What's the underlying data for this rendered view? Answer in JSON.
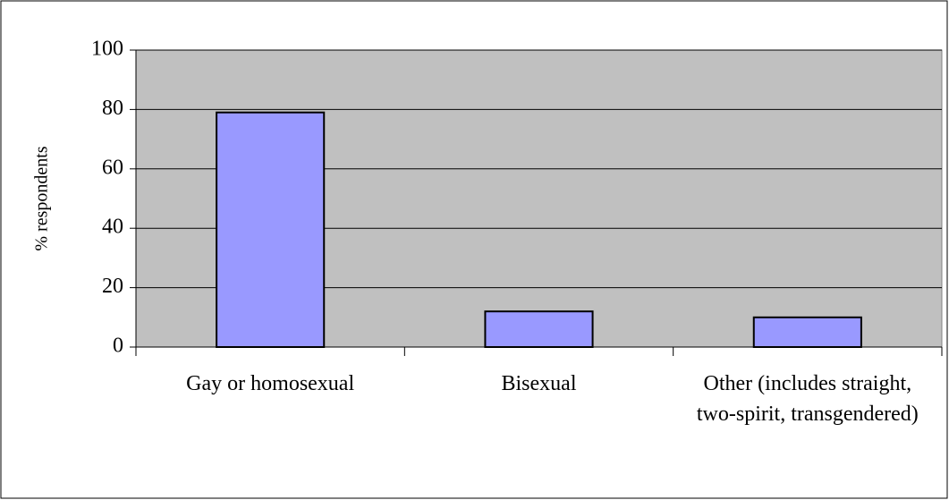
{
  "chart_data": {
    "type": "bar",
    "y_axis_label": "% respondents",
    "categories": [
      "Gay or homosexual",
      "Bisexual",
      "Other (includes straight, two-spirit, transgendered)"
    ],
    "values": [
      79,
      12,
      10
    ],
    "color": "#9999ff",
    "ylim": [
      0,
      100
    ],
    "yticks": [
      0,
      20,
      40,
      60,
      80,
      100
    ],
    "grid": true
  }
}
